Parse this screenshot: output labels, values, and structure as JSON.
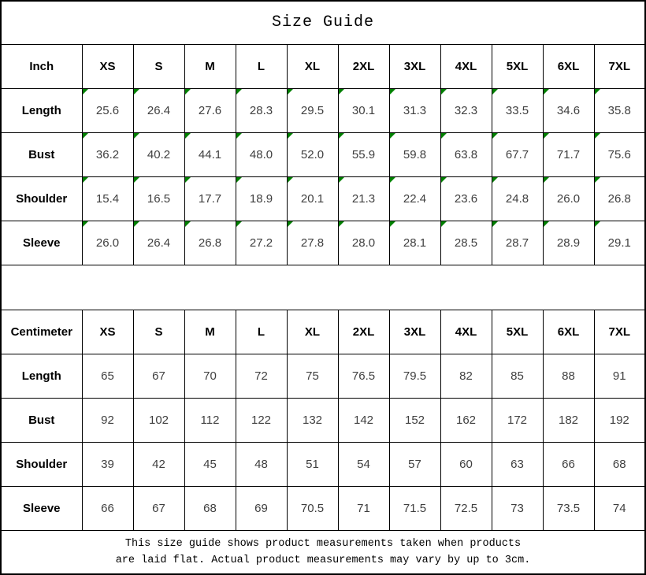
{
  "title": "Size Guide",
  "footer": {
    "line1": "This size guide shows product measurements taken when products",
    "line2": "are laid flat. Actual product measurements may vary by up to 3cm."
  },
  "colors": {
    "border": "#000000",
    "flag_green": "#008000",
    "header_text": "#000000",
    "data_text": "#3f3f3f"
  },
  "chart_data": [
    {
      "type": "table",
      "title": "Size Guide",
      "unit": "Inch",
      "value_flags": true,
      "flag_note": "small green triangle in top-left corner of every value cell",
      "columns": [
        "Inch",
        "XS",
        "S",
        "M",
        "L",
        "XL",
        "2XL",
        "3XL",
        "4XL",
        "5XL",
        "6XL",
        "7XL"
      ],
      "rows": [
        {
          "label": "Length",
          "values": [
            "25.6",
            "26.4",
            "27.6",
            "28.3",
            "29.5",
            "30.1",
            "31.3",
            "32.3",
            "33.5",
            "34.6",
            "35.8"
          ]
        },
        {
          "label": "Bust",
          "values": [
            "36.2",
            "40.2",
            "44.1",
            "48.0",
            "52.0",
            "55.9",
            "59.8",
            "63.8",
            "67.7",
            "71.7",
            "75.6"
          ]
        },
        {
          "label": "Shoulder",
          "values": [
            "15.4",
            "16.5",
            "17.7",
            "18.9",
            "20.1",
            "21.3",
            "22.4",
            "23.6",
            "24.8",
            "26.0",
            "26.8"
          ]
        },
        {
          "label": "Sleeve",
          "values": [
            "26.0",
            "26.4",
            "26.8",
            "27.2",
            "27.8",
            "28.0",
            "28.1",
            "28.5",
            "28.7",
            "28.9",
            "29.1"
          ]
        }
      ]
    },
    {
      "type": "table",
      "title": "Size Guide",
      "unit": "Centimeter",
      "value_flags": false,
      "columns": [
        "Centimeter",
        "XS",
        "S",
        "M",
        "L",
        "XL",
        "2XL",
        "3XL",
        "4XL",
        "5XL",
        "6XL",
        "7XL"
      ],
      "rows": [
        {
          "label": "Length",
          "values": [
            "65",
            "67",
            "70",
            "72",
            "75",
            "76.5",
            "79.5",
            "82",
            "85",
            "88",
            "91"
          ]
        },
        {
          "label": "Bust",
          "values": [
            "92",
            "102",
            "112",
            "122",
            "132",
            "142",
            "152",
            "162",
            "172",
            "182",
            "192"
          ]
        },
        {
          "label": "Shoulder",
          "values": [
            "39",
            "42",
            "45",
            "48",
            "51",
            "54",
            "57",
            "60",
            "63",
            "66",
            "68"
          ]
        },
        {
          "label": "Sleeve",
          "values": [
            "66",
            "67",
            "68",
            "69",
            "70.5",
            "71",
            "71.5",
            "72.5",
            "73",
            "73.5",
            "74"
          ]
        }
      ]
    }
  ]
}
